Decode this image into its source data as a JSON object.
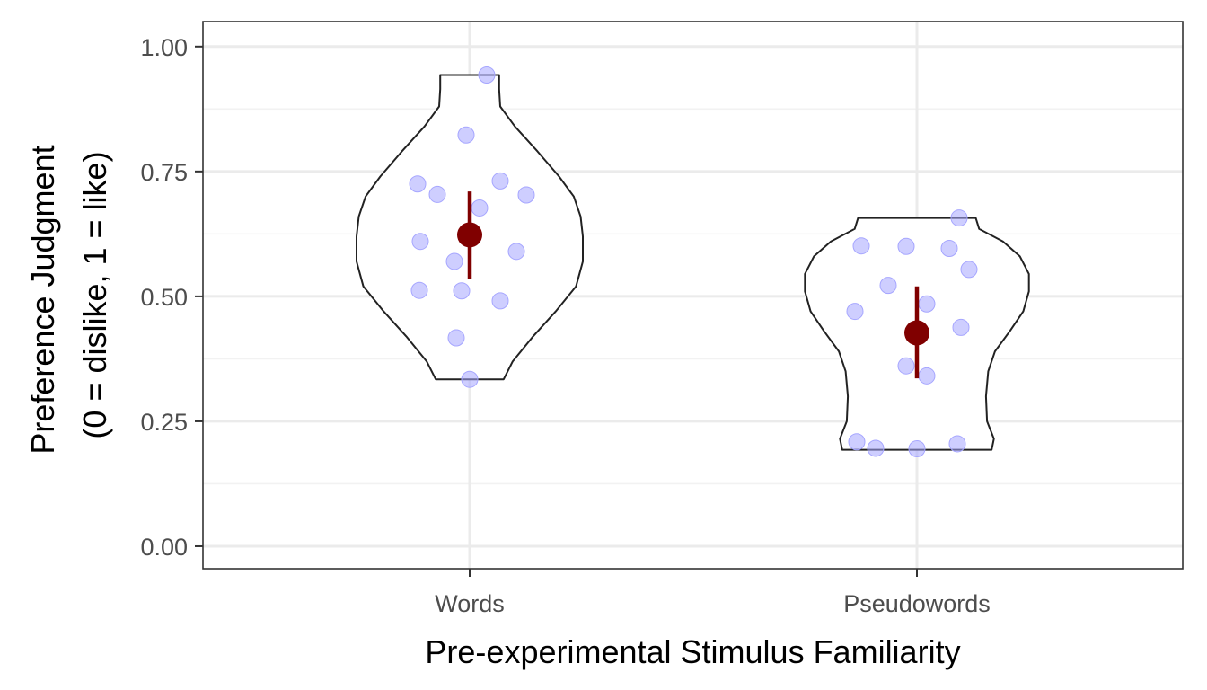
{
  "chart_data": {
    "type": "violin",
    "xlabel": "Pre-experimental Stimulus Familiarity",
    "ylabel_lines": [
      "Preference Judgment",
      "(0 = dislike, 1 = like)"
    ],
    "ylim": [
      -0.045,
      1.05
    ],
    "y_ticks": [
      0.0,
      0.25,
      0.5,
      0.75,
      1.0
    ],
    "y_tick_labels": [
      "0.00",
      "0.25",
      "0.50",
      "0.75",
      "1.00"
    ],
    "grid": true,
    "colors": {
      "point": "#a6a6ff",
      "mean": "#800000",
      "violin_stroke": "#222222",
      "grid_major": "#ebebeb",
      "grid_minor": "#f2f2f2",
      "panel_border": "#333333"
    },
    "categories": [
      "Words",
      "Pseudowords"
    ],
    "groups": [
      {
        "category": "Words",
        "mean": 0.623,
        "error_low": 0.535,
        "error_high": 0.71,
        "points": [
          0.943,
          0.823,
          0.731,
          0.725,
          0.704,
          0.703,
          0.677,
          0.61,
          0.59,
          0.57,
          0.512,
          0.511,
          0.491,
          0.417,
          0.334
        ],
        "density": [
          [
            0.334,
            0.3
          ],
          [
            0.37,
            0.38
          ],
          [
            0.42,
            0.56
          ],
          [
            0.47,
            0.76
          ],
          [
            0.52,
            0.94
          ],
          [
            0.57,
            1.0
          ],
          [
            0.62,
            1.0
          ],
          [
            0.66,
            0.98
          ],
          [
            0.7,
            0.92
          ],
          [
            0.74,
            0.79
          ],
          [
            0.79,
            0.6
          ],
          [
            0.84,
            0.4
          ],
          [
            0.88,
            0.27
          ],
          [
            0.915,
            0.26
          ],
          [
            0.943,
            0.26
          ]
        ]
      },
      {
        "category": "Pseudowords",
        "mean": 0.427,
        "error_low": 0.336,
        "error_high": 0.52,
        "points": [
          0.657,
          0.601,
          0.6,
          0.596,
          0.554,
          0.522,
          0.485,
          0.47,
          0.438,
          0.361,
          0.341,
          0.209,
          0.205,
          0.196,
          0.195
        ],
        "density": [
          [
            0.193,
            0.66
          ],
          [
            0.215,
            0.68
          ],
          [
            0.25,
            0.62
          ],
          [
            0.3,
            0.61
          ],
          [
            0.35,
            0.63
          ],
          [
            0.39,
            0.69
          ],
          [
            0.43,
            0.82
          ],
          [
            0.47,
            0.94
          ],
          [
            0.51,
            0.99
          ],
          [
            0.545,
            0.99
          ],
          [
            0.58,
            0.91
          ],
          [
            0.61,
            0.76
          ],
          [
            0.635,
            0.55
          ],
          [
            0.657,
            0.52
          ]
        ]
      }
    ]
  }
}
